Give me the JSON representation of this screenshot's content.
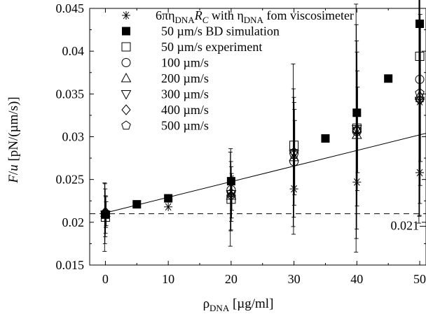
{
  "chart_data": {
    "type": "scatter",
    "x_axis": {
      "label_base": "ρ",
      "label_sub": "DNA",
      "label_unit": " [µg/ml]",
      "range": [
        -2.5,
        51
      ],
      "ticks": [
        0,
        10,
        20,
        30,
        40,
        50
      ]
    },
    "y_axis": {
      "label_italic_F": "F",
      "label_mid": "/",
      "label_italic_u": "u",
      "label_unit": " [pN/(µm/s)]",
      "range": [
        0.015,
        0.045
      ],
      "ticks": [
        "0.015",
        "0.02",
        "0.025",
        "0.03",
        "0.035",
        "0.04",
        "0.045"
      ]
    },
    "grid": false,
    "legend_position": "top-left",
    "series": [
      {
        "key": "stokes",
        "marker": "asterisk",
        "legend_parts": [
          "6πη",
          "DNA",
          "R",
          "C",
          "  with η",
          "DNA",
          " fom viscosimeter"
        ],
        "points": [
          [
            0,
            0.0208
          ],
          [
            10,
            0.0218
          ],
          [
            30,
            0.0239
          ],
          [
            40,
            0.0247
          ],
          [
            50,
            0.0258
          ],
          [
            50,
            0.0341
          ]
        ]
      },
      {
        "key": "bd",
        "marker": "filled-square",
        "legend": "50 µm/s BD simulation",
        "points": [
          [
            0,
            0.0209
          ],
          [
            5,
            0.0221
          ],
          [
            10,
            0.0228
          ],
          [
            20,
            0.0248
          ],
          [
            35,
            0.0298
          ],
          [
            40,
            0.0328
          ],
          [
            45,
            0.0368
          ],
          [
            50,
            0.0432
          ]
        ]
      },
      {
        "key": "exp50",
        "marker": "open-square",
        "legend": "50 µm/s experiment",
        "points": [
          [
            0,
            0.0206
          ],
          [
            20,
            0.0227
          ],
          [
            30,
            0.029
          ],
          [
            40,
            0.031
          ],
          [
            50,
            0.0394
          ]
        ],
        "err": [
          0.004,
          0.0055,
          0.0095,
          0.0145,
          0.0195
        ]
      },
      {
        "key": "v100",
        "marker": "circle",
        "legend": "100 µm/s",
        "points": [
          [
            0,
            0.021
          ],
          [
            20,
            0.0238
          ],
          [
            30,
            0.0271
          ],
          [
            40,
            0.0306
          ],
          [
            50,
            0.0367
          ]
        ],
        "err": [
          0.0035,
          0.0048,
          0.0085,
          0.0125,
          0.016
        ]
      },
      {
        "key": "v200",
        "marker": "triangle-up",
        "legend": "200 µm/s",
        "points": [
          [
            0,
            0.0211
          ],
          [
            20,
            0.0231
          ],
          [
            30,
            0.0276
          ],
          [
            40,
            0.0302
          ],
          [
            50,
            0.0348
          ]
        ],
        "err": [
          0.0028,
          0.004,
          0.007,
          0.011,
          0.014
        ]
      },
      {
        "key": "v300",
        "marker": "triangle-down",
        "legend": "300 µm/s",
        "points": [
          [
            0,
            0.0209
          ],
          [
            20,
            0.0233
          ],
          [
            30,
            0.028
          ],
          [
            40,
            0.0309
          ],
          [
            50,
            0.0342
          ]
        ],
        "err": [
          0.0022,
          0.0032,
          0.006,
          0.009,
          0.012
        ]
      },
      {
        "key": "v400",
        "marker": "diamond",
        "legend": "400 µm/s",
        "points": [
          [
            0,
            0.0212
          ],
          [
            20,
            0.0231
          ],
          [
            30,
            0.0282
          ],
          [
            40,
            0.0307
          ],
          [
            50,
            0.0343
          ]
        ],
        "err": [
          0.0018,
          0.0026,
          0.005,
          0.007,
          0.01
        ]
      },
      {
        "key": "v500",
        "marker": "pentagon",
        "legend": "500 µm/s",
        "points": [
          [
            0,
            0.021
          ],
          [
            20,
            0.0234
          ],
          [
            30,
            0.0279
          ],
          [
            40,
            0.0308
          ],
          [
            50,
            0.0351
          ]
        ],
        "err": [
          0.0014,
          0.002,
          0.004,
          0.005,
          0.008
        ]
      }
    ],
    "fit_line": {
      "x": [
        0,
        51
      ],
      "y": [
        0.0211,
        0.0304
      ]
    },
    "reference_line": {
      "y": 0.021,
      "label": "0.021"
    }
  }
}
